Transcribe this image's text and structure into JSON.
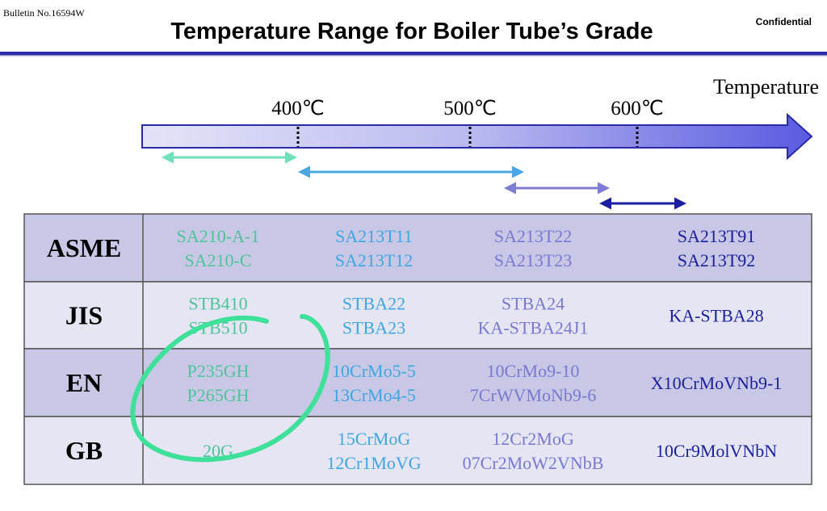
{
  "header": {
    "bulletin": "Bulletin No.16594W",
    "title": "Temperature Range for Boiler Tube’s Grade",
    "confidential": "Confidential"
  },
  "axis": {
    "label": "Temperature",
    "marks": [
      "400℃",
      "500℃",
      "600℃"
    ]
  },
  "table": {
    "rows": [
      {
        "standard": "ASME",
        "cells": [
          [
            "SA210-A-1",
            "SA210-C"
          ],
          [
            "SA213T11",
            "SA213T12"
          ],
          [
            "SA213T22",
            "SA213T23"
          ],
          [
            "SA213T91",
            "SA213T92"
          ]
        ]
      },
      {
        "standard": "JIS",
        "cells": [
          [
            "STB410",
            "STB510"
          ],
          [
            "STBA22",
            "STBA23"
          ],
          [
            "STBA24",
            "KA-STBA24J1"
          ],
          [
            "KA-STBA28"
          ]
        ]
      },
      {
        "standard": "EN",
        "cells": [
          [
            "P235GH",
            "P265GH"
          ],
          [
            "10CrMo5-5",
            "13CrMo4-5"
          ],
          [
            "10CrMo9-10",
            "7CrWVMoNb9-6"
          ],
          [
            "X10CrMoVNb9-1"
          ]
        ]
      },
      {
        "standard": "GB",
        "cells": [
          [
            "20G"
          ],
          [
            "15CrMoG",
            "12Cr1MoVG"
          ],
          [
            "12Cr2MoG",
            "07Cr2MoW2VNbB"
          ],
          [
            "10Cr9MolVNbN"
          ]
        ]
      }
    ]
  }
}
